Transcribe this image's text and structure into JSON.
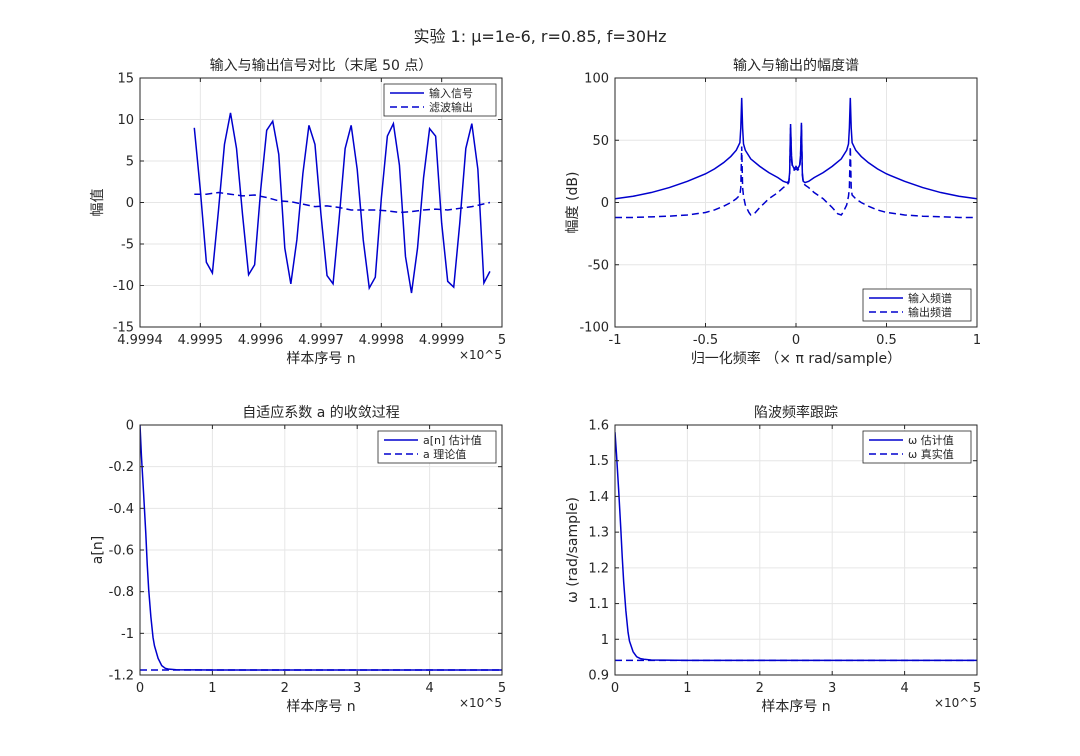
{
  "figure": {
    "suptitle": "实验 1: μ=1e-6, r=0.85, f=30Hz"
  },
  "colors": {
    "series": "#0000cd",
    "axis": "#262626",
    "grid": "#e6e6e6"
  },
  "chart_data": [
    {
      "type": "line",
      "title": "输入与输出信号对比（末尾 50 点）",
      "xlabel": "样本序号 n",
      "ylabel": "幅值",
      "x_exponent_label": "×10^5",
      "xlim": [
        4.9994,
        5.0
      ],
      "ylim": [
        -15,
        15
      ],
      "xticks": [
        4.9994,
        4.9995,
        4.9996,
        4.9997,
        4.9998,
        4.9999,
        5.0
      ],
      "xtick_labels": [
        "4.9994",
        "4.9995",
        "4.9996",
        "4.9997",
        "4.9998",
        "4.9999",
        "5"
      ],
      "yticks": [
        -15,
        -10,
        -5,
        0,
        5,
        10,
        15
      ],
      "grid": true,
      "legend_position": "top-right",
      "series": [
        {
          "name": "输入信号",
          "style": "solid",
          "x": [
            4.99949,
            4.9995,
            4.99951,
            4.99952,
            4.99953,
            4.99954,
            4.99955,
            4.99956,
            4.99957,
            4.99958,
            4.99959,
            4.9996,
            4.99961,
            4.99962,
            4.99963,
            4.99964,
            4.99965,
            4.99966,
            4.99967,
            4.99968,
            4.99969,
            4.9997,
            4.99971,
            4.99972,
            4.99973,
            4.99974,
            4.99975,
            4.99976,
            4.99977,
            4.99978,
            4.99979,
            4.9998,
            4.99981,
            4.99982,
            4.99983,
            4.99984,
            4.99985,
            4.99986,
            4.99987,
            4.99988,
            4.99989,
            4.9999,
            4.99991,
            4.99992,
            4.99993,
            4.99994,
            4.99995,
            4.99996,
            4.99997,
            4.99998
          ],
          "y": [
            9.0,
            1.5,
            -7.2,
            -8.5,
            -1.0,
            7.0,
            10.8,
            6.5,
            -1.5,
            -8.7,
            -7.5,
            1.5,
            8.7,
            9.8,
            5.8,
            -5.5,
            -9.8,
            -4.5,
            3.5,
            9.3,
            7.0,
            -1.5,
            -8.8,
            -9.8,
            -2.0,
            6.5,
            9.3,
            4.0,
            -4.5,
            -10.3,
            -9.0,
            0.5,
            8.0,
            9.5,
            4.5,
            -6.5,
            -10.9,
            -5.5,
            3.0,
            8.9,
            8.0,
            -2.5,
            -9.5,
            -10.2,
            -2.5,
            6.5,
            9.5,
            4.0,
            -9.7,
            -8.3
          ]
        },
        {
          "name": "滤波输出",
          "style": "dashed",
          "x": [
            4.99949,
            4.99951,
            4.99953,
            4.99955,
            4.99957,
            4.99959,
            4.99961,
            4.99963,
            4.99965,
            4.99967,
            4.99969,
            4.99971,
            4.99973,
            4.99975,
            4.99977,
            4.99979,
            4.99981,
            4.99983,
            4.99985,
            4.99987,
            4.99989,
            4.99991,
            4.99993,
            4.99995,
            4.99998
          ],
          "y": [
            1.0,
            1.0,
            1.2,
            1.0,
            0.8,
            0.9,
            0.6,
            0.2,
            0.1,
            -0.2,
            -0.5,
            -0.4,
            -0.6,
            -0.9,
            -0.9,
            -0.9,
            -1.0,
            -1.2,
            -1.1,
            -0.9,
            -0.8,
            -0.9,
            -0.7,
            -0.5,
            0.0
          ]
        }
      ]
    },
    {
      "type": "line",
      "title": "输入与输出的幅度谱",
      "xlabel": "归一化频率 （× π rad/sample）",
      "ylabel": "幅度 (dB)",
      "xlim": [
        -1,
        1
      ],
      "ylim": [
        -100,
        100
      ],
      "xticks": [
        -1,
        -0.5,
        0,
        0.5,
        1
      ],
      "xtick_labels": [
        "-1",
        "-0.5",
        "0",
        "0.5",
        "1"
      ],
      "yticks": [
        -100,
        -50,
        0,
        50,
        100
      ],
      "grid": true,
      "legend_position": "bottom-right",
      "series": [
        {
          "name": "输入频谱",
          "style": "solid",
          "x": [
            -1.0,
            -0.9,
            -0.8,
            -0.7,
            -0.6,
            -0.5,
            -0.45,
            -0.4,
            -0.36,
            -0.33,
            -0.31,
            -0.305,
            -0.3,
            -0.295,
            -0.29,
            -0.28,
            -0.25,
            -0.2,
            -0.15,
            -0.1,
            -0.07,
            -0.05,
            -0.04,
            -0.035,
            -0.03,
            -0.025,
            -0.02,
            -0.01,
            0.0,
            0.01,
            0.02,
            0.025,
            0.03,
            0.035,
            0.04,
            0.05,
            0.07,
            0.1,
            0.15,
            0.2,
            0.25,
            0.28,
            0.29,
            0.295,
            0.3,
            0.305,
            0.31,
            0.33,
            0.36,
            0.4,
            0.45,
            0.5,
            0.6,
            0.7,
            0.8,
            0.9,
            1.0
          ],
          "y": [
            3.0,
            5.0,
            8.0,
            12.0,
            17.0,
            23.0,
            27.0,
            32.0,
            37.0,
            42.0,
            48.0,
            60.0,
            84.0,
            60.0,
            47.0,
            42.0,
            35.0,
            29.0,
            24.0,
            20.0,
            17.0,
            16.0,
            17.0,
            24.0,
            63.0,
            38.0,
            30.0,
            27.0,
            29.0,
            27.0,
            30.0,
            38.0,
            64.0,
            24.0,
            17.0,
            16.0,
            17.0,
            20.0,
            24.0,
            29.0,
            35.0,
            42.0,
            47.0,
            60.0,
            84.0,
            60.0,
            48.0,
            42.0,
            37.0,
            32.0,
            27.0,
            23.0,
            17.0,
            12.0,
            8.0,
            5.0,
            3.0
          ]
        },
        {
          "name": "输出频谱",
          "style": "dashed",
          "x": [
            -1.0,
            -0.9,
            -0.8,
            -0.7,
            -0.6,
            -0.5,
            -0.45,
            -0.4,
            -0.36,
            -0.33,
            -0.31,
            -0.305,
            -0.3,
            -0.295,
            -0.29,
            -0.28,
            -0.26,
            -0.25,
            -0.23,
            -0.2,
            -0.15,
            -0.1,
            -0.07,
            -0.05,
            -0.04,
            -0.035,
            -0.03,
            -0.025,
            -0.02,
            -0.01,
            0.0,
            0.01,
            0.02,
            0.025,
            0.03,
            0.035,
            0.04,
            0.05,
            0.07,
            0.1,
            0.15,
            0.2,
            0.23,
            0.25,
            0.26,
            0.28,
            0.29,
            0.295,
            0.3,
            0.305,
            0.31,
            0.33,
            0.36,
            0.4,
            0.45,
            0.5,
            0.6,
            0.7,
            0.8,
            0.9,
            1.0
          ],
          "y": [
            -12.0,
            -12.0,
            -11.5,
            -11.0,
            -10.0,
            -8.0,
            -6.0,
            -3.0,
            0.0,
            3.0,
            6.0,
            12.0,
            45.0,
            12.0,
            5.0,
            -2.0,
            -8.0,
            -10.0,
            -9.0,
            -4.0,
            3.0,
            8.0,
            12.0,
            14.0,
            16.0,
            22.0,
            60.0,
            35.0,
            28.0,
            26.0,
            27.0,
            26.0,
            28.0,
            35.0,
            62.0,
            22.0,
            16.0,
            14.0,
            12.0,
            8.0,
            3.0,
            -4.0,
            -9.0,
            -10.0,
            -8.0,
            -2.0,
            5.0,
            12.0,
            45.0,
            12.0,
            6.0,
            3.0,
            0.0,
            -3.0,
            -6.0,
            -8.0,
            -10.0,
            -11.0,
            -11.5,
            -12.0,
            -12.0
          ]
        }
      ]
    },
    {
      "type": "line",
      "title": "自适应系数 a 的收敛过程",
      "xlabel": "样本序号 n",
      "ylabel": "a[n]",
      "x_exponent_label": "×10^5",
      "xlim": [
        0,
        5
      ],
      "ylim": [
        -1.2,
        0
      ],
      "xticks": [
        0,
        1,
        2,
        3,
        4,
        5
      ],
      "xtick_labels": [
        "0",
        "1",
        "2",
        "3",
        "4",
        "5"
      ],
      "yticks": [
        -1.2,
        -1.0,
        -0.8,
        -0.6,
        -0.4,
        -0.2,
        0.0
      ],
      "ytick_labels": [
        "-1.2",
        "-1",
        "-0.8",
        "-0.6",
        "-0.4",
        "-0.2",
        "0"
      ],
      "grid": true,
      "legend_position": "top-right",
      "series": [
        {
          "name": "a[n] 估计值",
          "style": "solid",
          "x": [
            0,
            0.02,
            0.05,
            0.08,
            0.1,
            0.12,
            0.15,
            0.18,
            0.2,
            0.25,
            0.3,
            0.35,
            0.4,
            0.5,
            1,
            2,
            3,
            4,
            5
          ],
          "y": [
            0.0,
            -0.15,
            -0.33,
            -0.52,
            -0.67,
            -0.79,
            -0.92,
            -1.02,
            -1.06,
            -1.12,
            -1.155,
            -1.168,
            -1.172,
            -1.175,
            -1.176,
            -1.176,
            -1.176,
            -1.176,
            -1.176
          ]
        },
        {
          "name": "a 理论值",
          "style": "dashed",
          "x": [
            0,
            5
          ],
          "y": [
            -1.176,
            -1.176
          ]
        }
      ]
    },
    {
      "type": "line",
      "title": "陷波频率跟踪",
      "xlabel": "样本序号 n",
      "ylabel": "ω (rad/sample)",
      "x_exponent_label": "×10^5",
      "xlim": [
        0,
        5
      ],
      "ylim": [
        0.9,
        1.6
      ],
      "xticks": [
        0,
        1,
        2,
        3,
        4,
        5
      ],
      "xtick_labels": [
        "0",
        "1",
        "2",
        "3",
        "4",
        "5"
      ],
      "yticks": [
        0.9,
        1.0,
        1.1,
        1.2,
        1.3,
        1.4,
        1.5,
        1.6
      ],
      "ytick_labels": [
        "0.9",
        "1",
        "1.1",
        "1.2",
        "1.3",
        "1.4",
        "1.5",
        "1.6"
      ],
      "grid": true,
      "legend_position": "top-right",
      "series": [
        {
          "name": "ω 估计值",
          "style": "solid",
          "x": [
            0,
            0.02,
            0.05,
            0.08,
            0.1,
            0.12,
            0.15,
            0.18,
            0.2,
            0.25,
            0.3,
            0.35,
            0.4,
            0.5,
            1,
            2,
            3,
            4,
            5
          ],
          "y": [
            1.58,
            1.52,
            1.42,
            1.31,
            1.23,
            1.16,
            1.08,
            1.02,
            0.995,
            0.965,
            0.951,
            0.946,
            0.944,
            0.942,
            0.941,
            0.941,
            0.941,
            0.941,
            0.941
          ]
        },
        {
          "name": "ω 真实值",
          "style": "dashed",
          "x": [
            0,
            5
          ],
          "y": [
            0.941,
            0.941
          ]
        }
      ]
    }
  ]
}
